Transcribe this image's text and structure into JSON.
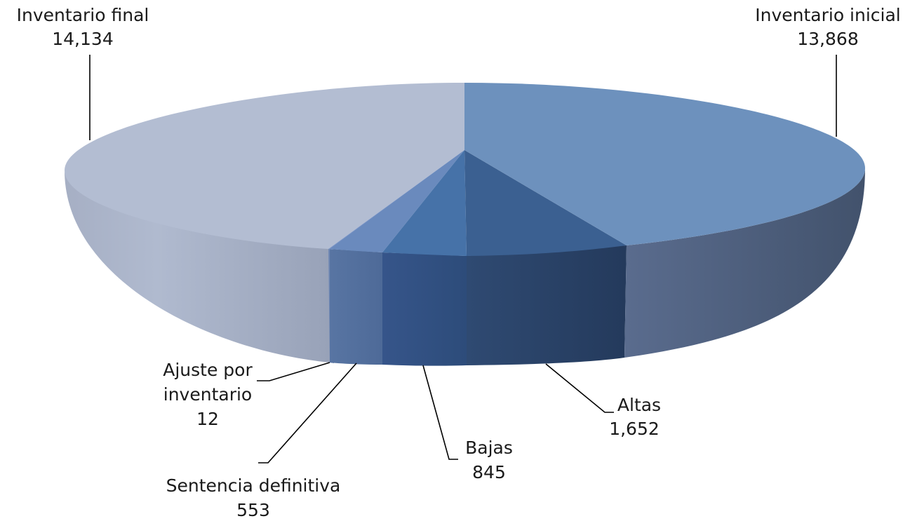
{
  "chart_data": {
    "type": "pie",
    "style": "3d-exploded-top",
    "slices": [
      {
        "label": "Inventario inicial",
        "value": 13868,
        "display": "13,868",
        "color": "#6d91bd"
      },
      {
        "label": "Altas",
        "value": 1652,
        "display": "1,652",
        "color": "#3b6091"
      },
      {
        "label": "Bajas",
        "value": 845,
        "display": "845",
        "color": "#4672a8"
      },
      {
        "label": "Sentencia definitiva",
        "value": 553,
        "display": "553",
        "color": "#6a8abd"
      },
      {
        "label": "Ajuste por inventario",
        "value": 12,
        "display": "12",
        "color": "#7d96c6"
      },
      {
        "label": "Inventario final",
        "value": 14134,
        "display": "14,134",
        "color": "#b3bdd2"
      }
    ]
  }
}
